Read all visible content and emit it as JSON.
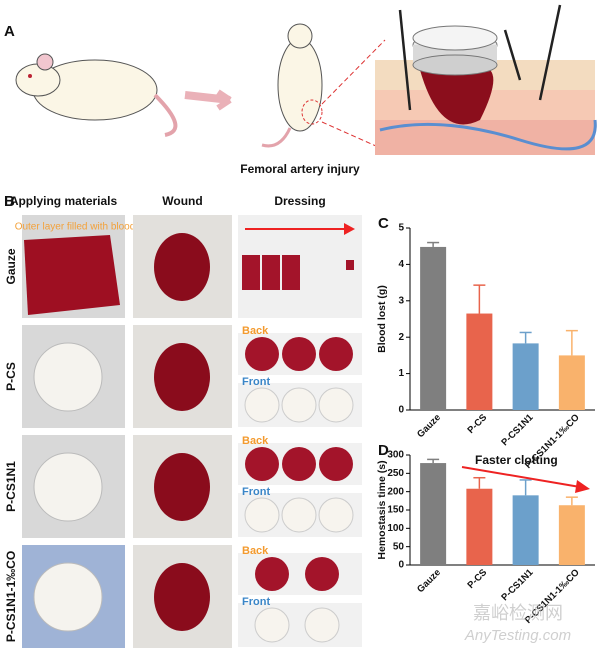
{
  "panel_labels": [
    "A",
    "B"
  ],
  "panel_a": {
    "caption": "Femoral artery injury"
  },
  "panel_b": {
    "columns": [
      "Applying materials",
      "Wound",
      "Dressing"
    ],
    "note": "Outer layer filled with blood",
    "rows": [
      {
        "label": "Gauze"
      },
      {
        "label": "P-CS",
        "dressing_labels": [
          "Back",
          "Front"
        ]
      },
      {
        "label": "P-CS1N1",
        "dressing_labels": [
          "Back",
          "Front"
        ]
      },
      {
        "label": "P-CS1N1-1‰CO",
        "dressing_labels": [
          "Back",
          "Front"
        ]
      }
    ]
  },
  "watermark": [
    "嘉峪检测网",
    "AnyTesting.com"
  ],
  "chart_data": [
    {
      "type": "bar",
      "panel_label": "C",
      "y_label": "Blood lost (g)",
      "categories": [
        "Gauze",
        "P-CS",
        "P-CS1N1",
        "P-CS1N1-1‰CO"
      ],
      "values": [
        4.48,
        2.65,
        1.83,
        1.5
      ],
      "errors": [
        0.12,
        0.78,
        0.3,
        0.68
      ],
      "colors": [
        "#7f7f7f",
        "#e8644c",
        "#6ca0cb",
        "#f9b26c"
      ],
      "ylim": [
        0,
        5
      ],
      "yticks": [
        0,
        1,
        2,
        3,
        4,
        5
      ]
    },
    {
      "type": "bar",
      "panel_label": "D",
      "y_label": "Hemostasis time (s)",
      "categories": [
        "Gauze",
        "P-CS",
        "P-CS1N1",
        "P-CS1N1-1‰CO"
      ],
      "values": [
        278,
        208,
        190,
        163
      ],
      "errors": [
        10,
        30,
        42,
        22
      ],
      "colors": [
        "#7f7f7f",
        "#e8644c",
        "#6ca0cb",
        "#f9b26c"
      ],
      "ylim": [
        0,
        300
      ],
      "yticks": [
        0,
        50,
        100,
        150,
        200,
        250,
        300
      ],
      "annotation": "Faster clotting"
    }
  ]
}
